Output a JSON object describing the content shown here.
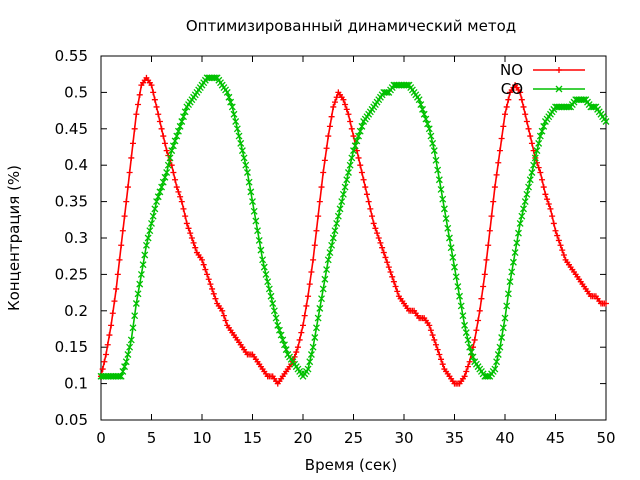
{
  "chart_data": {
    "type": "line",
    "title": "Оптимизированный динамический метод",
    "xlabel": "Время (сек)",
    "ylabel": "Концентрация (%)",
    "xlim": [
      0,
      50
    ],
    "ylim": [
      0.05,
      0.55
    ],
    "x_ticks": [
      "0",
      "5",
      "10",
      "15",
      "20",
      "25",
      "30",
      "35",
      "40",
      "45",
      "50"
    ],
    "y_ticks": [
      "0.05",
      "0.1",
      "0.15",
      "0.2",
      "0.25",
      "0.3",
      "0.35",
      "0.4",
      "0.45",
      "0.5",
      "0.55"
    ],
    "grid": false,
    "legend": "top-right",
    "series": [
      {
        "name": "NO",
        "color": "#ff0000",
        "marker": "plus",
        "x": [
          0,
          0.5,
          1,
          1.5,
          2,
          2.5,
          3,
          3.5,
          4,
          4.5,
          5,
          5.5,
          6,
          6.5,
          7,
          7.5,
          8,
          8.5,
          9,
          9.5,
          10,
          10.5,
          11,
          11.5,
          12,
          12.5,
          13,
          13.5,
          14,
          14.5,
          15,
          15.5,
          16,
          16.5,
          17,
          17.5,
          18,
          18.5,
          19,
          19.5,
          20,
          20.5,
          21,
          21.5,
          22,
          22.5,
          23,
          23.5,
          24,
          24.5,
          25,
          25.5,
          26,
          26.5,
          27,
          27.5,
          28,
          28.5,
          29,
          29.5,
          30,
          30.5,
          31,
          31.5,
          32,
          32.5,
          33,
          33.5,
          34,
          34.5,
          35,
          35.5,
          36,
          36.5,
          37,
          37.5,
          38,
          38.5,
          39,
          39.5,
          40,
          40.5,
          41,
          41.5,
          42,
          42.5,
          43,
          43.5,
          44,
          44.5,
          45,
          45.5,
          46,
          46.5,
          47,
          47.5,
          48,
          48.5,
          49,
          49.5,
          50
        ],
        "y": [
          0.11,
          0.14,
          0.18,
          0.23,
          0.29,
          0.35,
          0.41,
          0.47,
          0.51,
          0.52,
          0.51,
          0.48,
          0.45,
          0.42,
          0.4,
          0.37,
          0.35,
          0.32,
          0.3,
          0.28,
          0.27,
          0.25,
          0.23,
          0.21,
          0.2,
          0.18,
          0.17,
          0.16,
          0.15,
          0.14,
          0.14,
          0.13,
          0.12,
          0.11,
          0.11,
          0.1,
          0.11,
          0.12,
          0.13,
          0.15,
          0.18,
          0.22,
          0.27,
          0.33,
          0.39,
          0.44,
          0.48,
          0.5,
          0.49,
          0.47,
          0.44,
          0.41,
          0.38,
          0.35,
          0.32,
          0.3,
          0.28,
          0.26,
          0.24,
          0.22,
          0.21,
          0.2,
          0.2,
          0.19,
          0.19,
          0.18,
          0.16,
          0.14,
          0.12,
          0.11,
          0.1,
          0.1,
          0.11,
          0.13,
          0.16,
          0.2,
          0.25,
          0.31,
          0.37,
          0.42,
          0.47,
          0.5,
          0.51,
          0.5,
          0.47,
          0.44,
          0.41,
          0.39,
          0.36,
          0.34,
          0.31,
          0.29,
          0.27,
          0.26,
          0.25,
          0.24,
          0.23,
          0.22,
          0.22,
          0.21,
          0.21
        ]
      },
      {
        "name": "CO",
        "color": "#00c000",
        "marker": "cross",
        "x": [
          0,
          0.5,
          1,
          1.5,
          2,
          2.5,
          3,
          3.5,
          4,
          4.5,
          5,
          5.5,
          6,
          6.5,
          7,
          7.5,
          8,
          8.5,
          9,
          9.5,
          10,
          10.5,
          11,
          11.5,
          12,
          12.5,
          13,
          13.5,
          14,
          14.5,
          15,
          15.5,
          16,
          16.5,
          17,
          17.5,
          18,
          18.5,
          19,
          19.5,
          20,
          20.5,
          21,
          21.5,
          22,
          22.5,
          23,
          23.5,
          24,
          24.5,
          25,
          25.5,
          26,
          26.5,
          27,
          27.5,
          28,
          28.5,
          29,
          29.5,
          30,
          30.5,
          31,
          31.5,
          32,
          32.5,
          33,
          33.5,
          34,
          34.5,
          35,
          35.5,
          36,
          36.5,
          37,
          37.5,
          38,
          38.5,
          39,
          39.5,
          40,
          40.5,
          41,
          41.5,
          42,
          42.5,
          43,
          43.5,
          44,
          44.5,
          45,
          45.5,
          46,
          46.5,
          47,
          47.5,
          48,
          48.5,
          49,
          49.5,
          50
        ],
        "y": [
          0.11,
          0.11,
          0.11,
          0.11,
          0.11,
          0.13,
          0.16,
          0.21,
          0.25,
          0.29,
          0.32,
          0.35,
          0.37,
          0.39,
          0.42,
          0.44,
          0.46,
          0.48,
          0.49,
          0.5,
          0.51,
          0.52,
          0.52,
          0.52,
          0.51,
          0.5,
          0.48,
          0.45,
          0.42,
          0.39,
          0.35,
          0.31,
          0.27,
          0.24,
          0.21,
          0.18,
          0.16,
          0.14,
          0.13,
          0.12,
          0.11,
          0.12,
          0.15,
          0.19,
          0.23,
          0.27,
          0.3,
          0.33,
          0.36,
          0.39,
          0.42,
          0.44,
          0.46,
          0.47,
          0.48,
          0.49,
          0.5,
          0.5,
          0.51,
          0.51,
          0.51,
          0.51,
          0.5,
          0.49,
          0.47,
          0.45,
          0.42,
          0.38,
          0.34,
          0.3,
          0.26,
          0.22,
          0.18,
          0.15,
          0.13,
          0.12,
          0.11,
          0.11,
          0.12,
          0.15,
          0.19,
          0.24,
          0.28,
          0.32,
          0.35,
          0.38,
          0.41,
          0.44,
          0.46,
          0.47,
          0.48,
          0.48,
          0.48,
          0.48,
          0.49,
          0.49,
          0.49,
          0.48,
          0.48,
          0.47,
          0.46
        ]
      }
    ]
  }
}
